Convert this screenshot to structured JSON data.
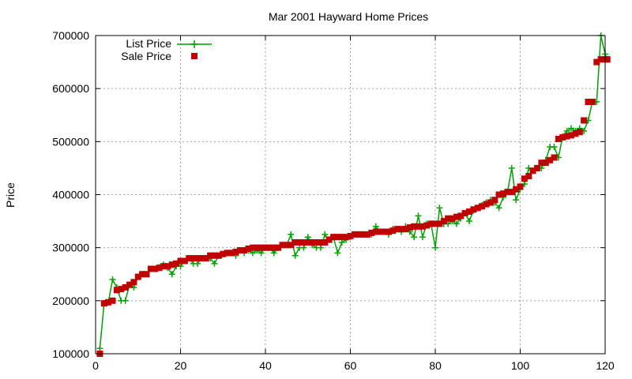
{
  "chart_data": {
    "type": "line",
    "title": "Mar 2001 Hayward Home Prices",
    "xlabel": "",
    "ylabel": "Price",
    "xlim": [
      0,
      120
    ],
    "ylim": [
      100000,
      700000
    ],
    "xticks": [
      0,
      20,
      40,
      60,
      80,
      100,
      120
    ],
    "yticks": [
      100000,
      200000,
      300000,
      400000,
      500000,
      600000,
      700000
    ],
    "grid": true,
    "legend_position": "top-left",
    "colors": {
      "list": "#00a000",
      "sale": "#c00000"
    },
    "series": [
      {
        "name": "List Price",
        "marker": "plus",
        "values": [
          110000,
          195000,
          197000,
          240000,
          225000,
          200000,
          200000,
          230000,
          225000,
          245000,
          250000,
          250000,
          260000,
          260000,
          263000,
          268000,
          262000,
          250000,
          265000,
          265000,
          275000,
          280000,
          270000,
          270000,
          280000,
          280000,
          280000,
          270000,
          285000,
          288000,
          290000,
          290000,
          285000,
          295000,
          290000,
          295000,
          290000,
          295000,
          290000,
          300000,
          300000,
          290000,
          300000,
          305000,
          305000,
          325000,
          285000,
          300000,
          300000,
          320000,
          305000,
          300000,
          300000,
          325000,
          315000,
          320000,
          290000,
          310000,
          315000,
          320000,
          325000,
          325000,
          325000,
          325000,
          325000,
          340000,
          330000,
          330000,
          325000,
          335000,
          335000,
          330000,
          340000,
          330000,
          320000,
          360000,
          320000,
          345000,
          345000,
          300000,
          375000,
          345000,
          345000,
          350000,
          345000,
          355000,
          365000,
          350000,
          370000,
          375000,
          380000,
          385000,
          390000,
          385000,
          375000,
          395000,
          405000,
          450000,
          390000,
          410000,
          420000,
          450000,
          445000,
          450000,
          450000,
          465000,
          490000,
          490000,
          470000,
          510000,
          520000,
          525000,
          520000,
          525000,
          520000,
          540000,
          575000,
          575000,
          700000,
          665000,
          655000
        ],
        "x": [
          1,
          2,
          3,
          4,
          5,
          6,
          7,
          8,
          9,
          10,
          11,
          12,
          13,
          14,
          15,
          16,
          17,
          18,
          19,
          20,
          21,
          22,
          23,
          24,
          25,
          26,
          27,
          28,
          29,
          30,
          31,
          32,
          33,
          34,
          35,
          36,
          37,
          38,
          39,
          40,
          41,
          42,
          43,
          44,
          45,
          46,
          47,
          48,
          49,
          50,
          51,
          52,
          53,
          54,
          55,
          56,
          57,
          58,
          59,
          60,
          61,
          62,
          63,
          64,
          65,
          66,
          67,
          68,
          69,
          70,
          71,
          72,
          73,
          74,
          75,
          76,
          77,
          78,
          79,
          80,
          81,
          82,
          83,
          84,
          85,
          86,
          87,
          88,
          89,
          90,
          91,
          92,
          93,
          94,
          95,
          96,
          97,
          98,
          99,
          100,
          101,
          102,
          103,
          104,
          105,
          106,
          107,
          108,
          109,
          110,
          111,
          112,
          113,
          114,
          115,
          116,
          117,
          118,
          119,
          120,
          120.5
        ]
      },
      {
        "name": "Sale Price",
        "marker": "square",
        "values": [
          100000,
          195000,
          197000,
          200000,
          220000,
          222000,
          225000,
          230000,
          235000,
          245000,
          250000,
          250000,
          260000,
          260000,
          262000,
          265000,
          265000,
          268000,
          270000,
          275000,
          275000,
          280000,
          280000,
          280000,
          280000,
          280000,
          285000,
          285000,
          285000,
          288000,
          290000,
          290000,
          292000,
          295000,
          295000,
          298000,
          300000,
          300000,
          300000,
          300000,
          300000,
          300000,
          300000,
          305000,
          305000,
          305000,
          310000,
          310000,
          310000,
          310000,
          310000,
          310000,
          310000,
          310000,
          315000,
          320000,
          320000,
          320000,
          320000,
          322000,
          325000,
          325000,
          325000,
          325000,
          328000,
          330000,
          330000,
          330000,
          330000,
          332000,
          335000,
          335000,
          335000,
          338000,
          340000,
          340000,
          340000,
          342000,
          345000,
          345000,
          345000,
          350000,
          355000,
          355000,
          358000,
          360000,
          365000,
          368000,
          372000,
          375000,
          378000,
          382000,
          385000,
          390000,
          400000,
          402000,
          405000,
          405000,
          410000,
          415000,
          430000,
          435000,
          445000,
          450000,
          460000,
          460000,
          465000,
          470000,
          505000,
          508000,
          510000,
          512000,
          515000,
          518000,
          540000,
          575000,
          575000,
          650000,
          655000,
          655000,
          655000
        ],
        "x": [
          1,
          2,
          3,
          4,
          5,
          6,
          7,
          8,
          9,
          10,
          11,
          12,
          13,
          14,
          15,
          16,
          17,
          18,
          19,
          20,
          21,
          22,
          23,
          24,
          25,
          26,
          27,
          28,
          29,
          30,
          31,
          32,
          33,
          34,
          35,
          36,
          37,
          38,
          39,
          40,
          41,
          42,
          43,
          44,
          45,
          46,
          47,
          48,
          49,
          50,
          51,
          52,
          53,
          54,
          55,
          56,
          57,
          58,
          59,
          60,
          61,
          62,
          63,
          64,
          65,
          66,
          67,
          68,
          69,
          70,
          71,
          72,
          73,
          74,
          75,
          76,
          77,
          78,
          79,
          80,
          81,
          82,
          83,
          84,
          85,
          86,
          87,
          88,
          89,
          90,
          91,
          92,
          93,
          94,
          95,
          96,
          97,
          98,
          99,
          100,
          101,
          102,
          103,
          104,
          105,
          106,
          107,
          108,
          109,
          110,
          111,
          112,
          113,
          114,
          115,
          116,
          117,
          118,
          119,
          120,
          120.5
        ]
      }
    ]
  }
}
